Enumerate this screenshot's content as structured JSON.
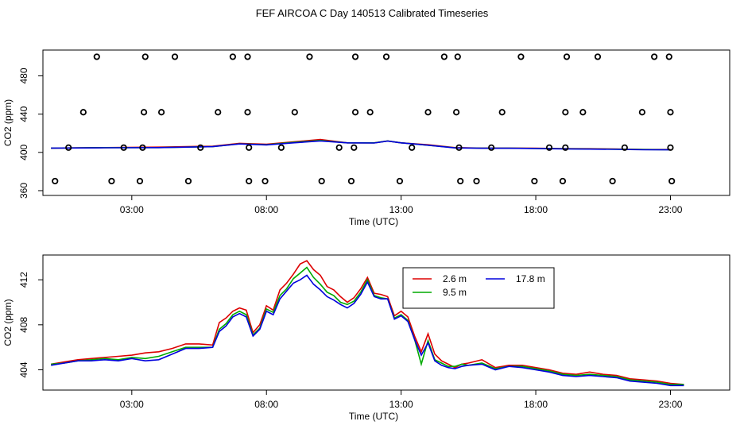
{
  "title": "FEF AIRCOA C  Day 140513  Calibrated Timeseries",
  "chart_data": [
    {
      "type": "scatter",
      "xlabel": "Time (UTC)",
      "ylabel": "CO2 (ppm)",
      "x_unit": "hours UTC",
      "xlim": [
        -0.3,
        25.2
      ],
      "ylim": [
        355,
        507
      ],
      "x_ticks": [
        3,
        8,
        13,
        18,
        23
      ],
      "x_tick_labels": [
        "03:00",
        "08:00",
        "13:00",
        "18:00",
        "23:00"
      ],
      "y_ticks": [
        360,
        400,
        440,
        480
      ],
      "y_tick_labels": [
        "360",
        "400",
        "440",
        "480"
      ],
      "grid": false,
      "calibration_points": {
        "marker": "open circle",
        "color": "#000000",
        "points": [
          {
            "x": 1.7,
            "y": 500
          },
          {
            "x": 3.5,
            "y": 500
          },
          {
            "x": 4.6,
            "y": 500
          },
          {
            "x": 6.75,
            "y": 500
          },
          {
            "x": 7.3,
            "y": 500
          },
          {
            "x": 9.6,
            "y": 500
          },
          {
            "x": 11.3,
            "y": 500
          },
          {
            "x": 12.45,
            "y": 500
          },
          {
            "x": 14.6,
            "y": 500
          },
          {
            "x": 15.1,
            "y": 500
          },
          {
            "x": 17.45,
            "y": 500
          },
          {
            "x": 19.15,
            "y": 500
          },
          {
            "x": 20.3,
            "y": 500
          },
          {
            "x": 22.4,
            "y": 500
          },
          {
            "x": 22.95,
            "y": 500
          },
          {
            "x": 1.2,
            "y": 442
          },
          {
            "x": 3.45,
            "y": 442
          },
          {
            "x": 4.1,
            "y": 442
          },
          {
            "x": 6.2,
            "y": 442
          },
          {
            "x": 7.3,
            "y": 442
          },
          {
            "x": 9.05,
            "y": 442
          },
          {
            "x": 11.3,
            "y": 442
          },
          {
            "x": 11.85,
            "y": 442
          },
          {
            "x": 14.0,
            "y": 442
          },
          {
            "x": 15.05,
            "y": 442
          },
          {
            "x": 16.75,
            "y": 442
          },
          {
            "x": 19.1,
            "y": 442
          },
          {
            "x": 19.75,
            "y": 442
          },
          {
            "x": 21.95,
            "y": 442
          },
          {
            "x": 23.0,
            "y": 442
          },
          {
            "x": 0.65,
            "y": 405
          },
          {
            "x": 2.7,
            "y": 405
          },
          {
            "x": 3.4,
            "y": 405
          },
          {
            "x": 5.55,
            "y": 405
          },
          {
            "x": 7.35,
            "y": 405
          },
          {
            "x": 8.55,
            "y": 405
          },
          {
            "x": 10.7,
            "y": 405
          },
          {
            "x": 11.25,
            "y": 405
          },
          {
            "x": 13.4,
            "y": 405
          },
          {
            "x": 15.15,
            "y": 405
          },
          {
            "x": 16.35,
            "y": 405
          },
          {
            "x": 18.5,
            "y": 405
          },
          {
            "x": 19.1,
            "y": 405
          },
          {
            "x": 21.3,
            "y": 405
          },
          {
            "x": 23.0,
            "y": 405
          },
          {
            "x": 0.15,
            "y": 370
          },
          {
            "x": 2.25,
            "y": 370
          },
          {
            "x": 3.3,
            "y": 370
          },
          {
            "x": 5.1,
            "y": 370
          },
          {
            "x": 7.35,
            "y": 370
          },
          {
            "x": 7.95,
            "y": 370
          },
          {
            "x": 10.05,
            "y": 370
          },
          {
            "x": 11.15,
            "y": 370
          },
          {
            "x": 12.95,
            "y": 370
          },
          {
            "x": 15.2,
            "y": 370
          },
          {
            "x": 15.8,
            "y": 370
          },
          {
            "x": 17.95,
            "y": 370
          },
          {
            "x": 19.0,
            "y": 370
          },
          {
            "x": 20.85,
            "y": 370
          },
          {
            "x": 23.05,
            "y": 370
          }
        ]
      },
      "series": [
        {
          "name": "2.6 m",
          "color": "#dd0000",
          "x": [
            0,
            2,
            4,
            6,
            7,
            8,
            9,
            10,
            11,
            12,
            12.5,
            13,
            14,
            15,
            16,
            17,
            18,
            19,
            20,
            21,
            22,
            23
          ],
          "y": [
            404.5,
            405,
            405.5,
            406.5,
            409.5,
            408.5,
            411,
            413.5,
            410,
            410,
            412,
            410,
            408,
            405,
            404.5,
            404.5,
            404.3,
            404,
            403.8,
            403.5,
            403,
            403
          ]
        },
        {
          "name": "9.5 m",
          "color": "#00aa00",
          "x": [
            0,
            2,
            4,
            6,
            7,
            8,
            9,
            10,
            11,
            12,
            12.5,
            13,
            14,
            15,
            16,
            17,
            18,
            19,
            20,
            21,
            22,
            23
          ],
          "y": [
            404.5,
            405,
            405,
            406,
            409,
            408,
            410.5,
            412.5,
            410,
            410,
            412,
            410,
            407.5,
            404.8,
            404.4,
            404.4,
            404.2,
            403.8,
            403.5,
            403.3,
            403,
            402.8
          ]
        },
        {
          "name": "17.8 m",
          "color": "#0000dd",
          "x": [
            0,
            2,
            4,
            6,
            7,
            8,
            9,
            10,
            11,
            12,
            12.5,
            13,
            14,
            15,
            16,
            17,
            18,
            19,
            20,
            21,
            22,
            23
          ],
          "y": [
            404.5,
            404.8,
            405,
            406,
            408.8,
            407.8,
            410,
            412,
            410,
            409.8,
            411.8,
            410,
            407.5,
            404.7,
            404.3,
            404.3,
            404.1,
            403.7,
            403.4,
            403.2,
            402.8,
            402.7
          ]
        }
      ]
    },
    {
      "type": "line",
      "xlabel": "Time (UTC)",
      "ylabel": "CO2 (ppm)",
      "x_unit": "hours UTC",
      "xlim": [
        -0.3,
        25.2
      ],
      "ylim": [
        402.2,
        414.2
      ],
      "x_ticks": [
        3,
        8,
        13,
        18,
        23
      ],
      "x_tick_labels": [
        "03:00",
        "08:00",
        "13:00",
        "18:00",
        "23:00"
      ],
      "y_ticks": [
        404,
        408,
        412
      ],
      "y_tick_labels": [
        "404",
        "408",
        "412"
      ],
      "grid": false,
      "legend": "upper-center",
      "series": [
        {
          "name": "2.6 m",
          "color": "#dd0000",
          "x": [
            0,
            0.5,
            1,
            1.5,
            2,
            2.5,
            3,
            3.5,
            4,
            4.5,
            5,
            5.5,
            6,
            6.25,
            6.5,
            6.75,
            7,
            7.25,
            7.5,
            7.75,
            8,
            8.25,
            8.5,
            8.75,
            9,
            9.25,
            9.5,
            9.75,
            10,
            10.25,
            10.5,
            10.75,
            11,
            11.25,
            11.5,
            11.75,
            12,
            12.25,
            12.5,
            12.75,
            13,
            13.25,
            13.5,
            13.75,
            14,
            14.25,
            14.5,
            14.75,
            15,
            15.25,
            15.5,
            16,
            16.5,
            17,
            17.5,
            18,
            18.5,
            19,
            19.5,
            20,
            20.5,
            21,
            21.5,
            22,
            22.5,
            23,
            23.5
          ],
          "y": [
            404.5,
            404.7,
            404.9,
            405.0,
            405.1,
            405.2,
            405.3,
            405.5,
            405.6,
            405.9,
            406.3,
            406.3,
            406.2,
            408.2,
            408.6,
            409.2,
            409.5,
            409.3,
            407.3,
            408.0,
            409.7,
            409.3,
            411.1,
            411.7,
            412.5,
            413.4,
            413.7,
            412.9,
            412.4,
            411.4,
            411.1,
            410.5,
            410.0,
            410.4,
            411.2,
            412.2,
            410.8,
            410.7,
            410.5,
            408.8,
            409.2,
            408.7,
            407.0,
            405.6,
            407.2,
            405.4,
            404.8,
            404.5,
            404.2,
            404.5,
            404.6,
            404.9,
            404.2,
            404.4,
            404.4,
            404.2,
            404.0,
            403.7,
            403.6,
            403.8,
            403.6,
            403.5,
            403.2,
            403.1,
            403.0,
            402.8,
            402.7
          ]
        },
        {
          "name": "9.5 m",
          "color": "#00aa00",
          "x": [
            0,
            0.5,
            1,
            1.5,
            2,
            2.5,
            3,
            3.5,
            4,
            4.5,
            5,
            5.5,
            6,
            6.25,
            6.5,
            6.75,
            7,
            7.25,
            7.5,
            7.75,
            8,
            8.25,
            8.5,
            8.75,
            9,
            9.25,
            9.5,
            9.75,
            10,
            10.25,
            10.5,
            10.75,
            11,
            11.25,
            11.5,
            11.75,
            12,
            12.25,
            12.5,
            12.75,
            13,
            13.25,
            13.5,
            13.75,
            14,
            14.25,
            14.5,
            14.75,
            15,
            15.25,
            15.5,
            16,
            16.5,
            17,
            17.5,
            18,
            18.5,
            19,
            19.5,
            20,
            20.5,
            21,
            21.5,
            22,
            22.5,
            23,
            23.5
          ],
          "y": [
            404.5,
            404.6,
            404.8,
            404.9,
            405.0,
            404.9,
            405.1,
            405.0,
            405.2,
            405.6,
            406.0,
            406.0,
            406.0,
            407.6,
            408.1,
            408.9,
            409.2,
            408.9,
            407.1,
            407.7,
            409.4,
            409.1,
            410.6,
            411.2,
            412.1,
            412.6,
            413.1,
            412.2,
            411.6,
            410.9,
            410.6,
            410.0,
            409.8,
            410.1,
            410.9,
            412.0,
            410.6,
            410.4,
            410.3,
            408.6,
            408.9,
            408.4,
            406.7,
            404.5,
            406.6,
            404.9,
            404.6,
            404.3,
            404.3,
            404.5,
            404.4,
            404.6,
            404.1,
            404.3,
            404.3,
            404.1,
            403.9,
            403.6,
            403.5,
            403.6,
            403.5,
            403.4,
            403.1,
            403.0,
            402.9,
            402.7,
            402.7
          ]
        },
        {
          "name": "17.8 m",
          "color": "#0000dd",
          "x": [
            0,
            0.5,
            1,
            1.5,
            2,
            2.5,
            3,
            3.5,
            4,
            4.5,
            5,
            5.5,
            6,
            6.25,
            6.5,
            6.75,
            7,
            7.25,
            7.5,
            7.75,
            8,
            8.25,
            8.5,
            8.75,
            9,
            9.25,
            9.5,
            9.75,
            10,
            10.25,
            10.5,
            10.75,
            11,
            11.25,
            11.5,
            11.75,
            12,
            12.25,
            12.5,
            12.75,
            13,
            13.25,
            13.5,
            13.75,
            14,
            14.25,
            14.5,
            14.75,
            15,
            15.25,
            15.5,
            16,
            16.5,
            17,
            17.5,
            18,
            18.5,
            19,
            19.5,
            20,
            20.5,
            21,
            21.5,
            22,
            22.5,
            23,
            23.5
          ],
          "y": [
            404.4,
            404.6,
            404.8,
            404.8,
            404.9,
            404.8,
            405.0,
            404.8,
            404.9,
            405.4,
            405.9,
            405.9,
            406.0,
            407.4,
            407.9,
            408.7,
            409.0,
            408.7,
            407.0,
            407.6,
            409.2,
            408.9,
            410.3,
            411.0,
            411.7,
            412.0,
            412.4,
            411.6,
            411.1,
            410.5,
            410.2,
            409.8,
            409.5,
            409.9,
            410.7,
            411.8,
            410.5,
            410.3,
            410.3,
            408.5,
            408.8,
            408.3,
            406.7,
            405.3,
            406.4,
            404.8,
            404.4,
            404.2,
            404.1,
            404.3,
            404.4,
            404.5,
            404.0,
            404.3,
            404.2,
            404.0,
            403.8,
            403.5,
            403.4,
            403.5,
            403.4,
            403.3,
            403.0,
            402.9,
            402.8,
            402.6,
            402.6
          ]
        }
      ]
    }
  ]
}
